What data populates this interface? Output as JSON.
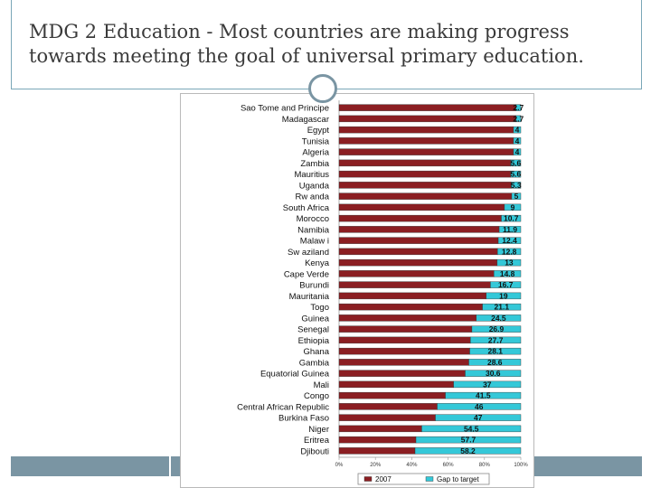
{
  "slide": {
    "title": "MDG 2 Education - Most countries are making progress towards meeting the goal of universal primary education."
  },
  "colors": {
    "value_bar": "#8b1e22",
    "gap_bar": "#34c8d8",
    "accent": "#7a95a3"
  },
  "chart_data": {
    "type": "bar",
    "orientation": "horizontal",
    "stacked": true,
    "unit": "percent",
    "xlim": [
      0,
      100
    ],
    "xticks": [
      "0%",
      "20%",
      "40%",
      "60%",
      "80%",
      "100%"
    ],
    "categories": [
      "Sao Tome and Principe",
      "Madagascar",
      "Egypt",
      "Tunisia",
      "Algeria",
      "Zambia",
      "Mauritius",
      "Uganda",
      "Rw anda",
      "South Africa",
      "Morocco",
      "Namibia",
      "Malaw i",
      "Sw aziland",
      "Kenya",
      "Cape Verde",
      "Burundi",
      "Mauritania",
      "Togo",
      "Guinea",
      "Senegal",
      "Ethiopia",
      "Ghana",
      "Gambia",
      "Equatorial Guinea",
      "Mali",
      "Congo",
      "Central African Republic",
      "Burkina Faso",
      "Niger",
      "Eritrea",
      "Djibouti"
    ],
    "series": [
      {
        "name": "2007",
        "values": [
          97.3,
          97.3,
          96,
          96,
          96,
          94.4,
          94.4,
          94.7,
          95,
          91,
          89.3,
          88.1,
          87.6,
          87.2,
          87,
          85.2,
          83.3,
          81,
          78.9,
          75.5,
          73.1,
          72.3,
          71.9,
          71.4,
          69.4,
          63,
          58.5,
          54,
          53,
          45.5,
          42.3,
          41.8
        ]
      },
      {
        "name": "Gap to target",
        "values": [
          2.7,
          2.7,
          4,
          4,
          4,
          5.6,
          5.6,
          5.3,
          5,
          9,
          10.7,
          11.9,
          12.4,
          12.8,
          13,
          14.8,
          16.7,
          19,
          21.1,
          24.5,
          26.9,
          27.7,
          28.1,
          28.6,
          30.6,
          37,
          41.5,
          46,
          47,
          54.5,
          57.7,
          58.2
        ]
      }
    ],
    "data_labels": [
      "2.7",
      "2.7",
      "4",
      "4",
      "4",
      "5.6",
      "5.6",
      "5.3",
      "5",
      "9",
      "10.7",
      "11.9",
      "12.4",
      "12.8",
      "13",
      "14.8",
      "16.7",
      "19",
      "21.1",
      "24.5",
      "26.9",
      "27.7",
      "28.1",
      "28.6",
      "30.6",
      "37",
      "41.5",
      "46",
      "47",
      "54.5",
      "57.7",
      "58.2"
    ],
    "legend": [
      "2007",
      "Gap to target"
    ],
    "legend_position": "bottom"
  }
}
